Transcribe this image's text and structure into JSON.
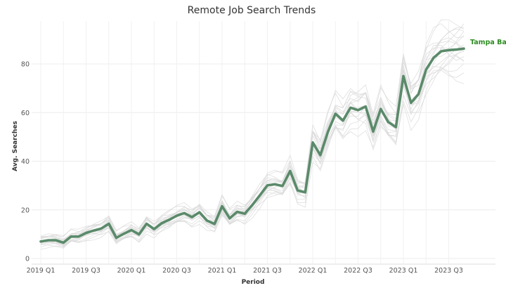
{
  "chart_data": {
    "type": "line",
    "title": "Remote Job Search Trends",
    "xlabel": "Period",
    "ylabel": "Avg. Searches",
    "ylim": [
      0,
      95
    ],
    "yticks": [
      0,
      20,
      40,
      60,
      80
    ],
    "x_tick_labels": [
      "2019 Q1",
      "2019 Q3",
      "2020 Q1",
      "2020 Q3",
      "2021 Q1",
      "2021 Q3",
      "2022 Q1",
      "2022 Q3",
      "2023 Q1",
      "2023 Q3"
    ],
    "grid": "on",
    "x_periods": [
      "2019-01",
      "2019-02",
      "2019-03",
      "2019-04",
      "2019-05",
      "2019-06",
      "2019-07",
      "2019-08",
      "2019-09",
      "2019-10",
      "2019-11",
      "2019-12",
      "2020-01",
      "2020-02",
      "2020-03",
      "2020-04",
      "2020-05",
      "2020-06",
      "2020-07",
      "2020-08",
      "2020-09",
      "2020-10",
      "2020-11",
      "2020-12",
      "2021-01",
      "2021-02",
      "2021-03",
      "2021-04",
      "2021-05",
      "2021-06",
      "2021-07",
      "2021-08",
      "2021-09",
      "2021-10",
      "2021-11",
      "2021-12",
      "2022-01",
      "2022-02",
      "2022-03",
      "2022-04",
      "2022-05",
      "2022-06",
      "2022-07",
      "2022-08",
      "2022-09",
      "2022-10",
      "2022-11",
      "2022-12",
      "2023-01",
      "2023-02",
      "2023-03",
      "2023-04",
      "2023-05",
      "2023-06",
      "2023-07",
      "2023-08",
      "2023-09"
    ],
    "highlight": {
      "name": "Tampa Bay",
      "color": "#5a8a6a",
      "label_color": "#2e8b22",
      "values": [
        7,
        7.5,
        7.5,
        6.5,
        9,
        9,
        10.5,
        11.5,
        12.3,
        14.3,
        8.5,
        10.2,
        11.7,
        9.9,
        14.3,
        12.1,
        14.5,
        15.9,
        17.6,
        18.7,
        17,
        19,
        15.6,
        14.2,
        21.5,
        16.5,
        19.2,
        18.4,
        22,
        26,
        30.1,
        30.5,
        29.8,
        36,
        28,
        27.2,
        47.7,
        42.5,
        52,
        59.5,
        56.7,
        62,
        61,
        62.5,
        52.2,
        61.5,
        56.1,
        54,
        75,
        64,
        67.6,
        77.7,
        82.5,
        85.2,
        85.7,
        85.9,
        86.3
      ]
    },
    "background_series": [
      {
        "offset": 1.6,
        "phase": 0.3,
        "amp": 2.2
      },
      {
        "offset": -1.4,
        "phase": 1.1,
        "amp": 2.6
      },
      {
        "offset": 2.5,
        "phase": 2.0,
        "amp": 1.8
      },
      {
        "offset": -2.6,
        "phase": 2.7,
        "amp": 3.0
      },
      {
        "offset": 0.6,
        "phase": 3.5,
        "amp": 2.4
      },
      {
        "offset": -0.8,
        "phase": 4.2,
        "amp": 2.0
      },
      {
        "offset": 3.4,
        "phase": 5.0,
        "amp": 2.8
      },
      {
        "offset": -3.2,
        "phase": 5.6,
        "amp": 2.2
      },
      {
        "offset": 1.1,
        "phase": 0.9,
        "amp": 3.2
      },
      {
        "offset": -1.9,
        "phase": 1.7,
        "amp": 2.5
      },
      {
        "offset": 2.1,
        "phase": 2.4,
        "amp": 2.1
      },
      {
        "offset": -0.3,
        "phase": 3.1,
        "amp": 2.9
      },
      {
        "offset": 4.0,
        "phase": 3.9,
        "amp": 1.9
      },
      {
        "offset": -4.1,
        "phase": 4.6,
        "amp": 2.6
      },
      {
        "offset": 0.2,
        "phase": 5.3,
        "amp": 3.3
      },
      {
        "offset": -2.2,
        "phase": 6.0,
        "amp": 2.3
      },
      {
        "offset": 2.9,
        "phase": 0.6,
        "amp": 2.7
      },
      {
        "offset": -0.6,
        "phase": 1.4,
        "amp": 2.0
      }
    ]
  }
}
